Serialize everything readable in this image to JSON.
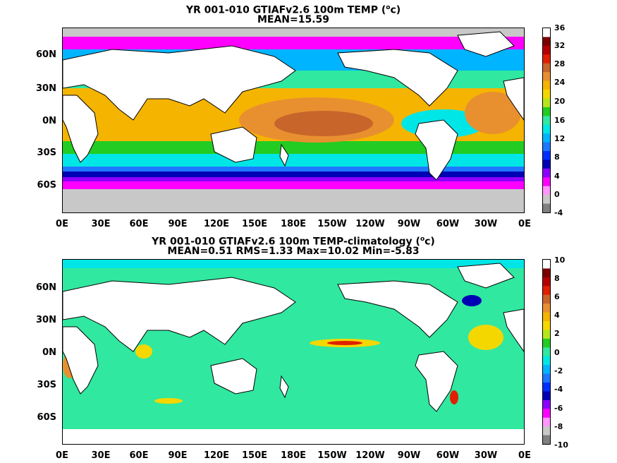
{
  "panels": [
    {
      "title_line1_pre": "YR 001-010 GTIAFv2.6 100m TEMP (",
      "title_unit_sup": "o",
      "title_unit_post": "c)",
      "title_line2": "MEAN=15.59",
      "lat_labels": [
        "60N",
        "30N",
        "0N",
        "30S",
        "60S"
      ],
      "lon_labels": [
        "0E",
        "30E",
        "60E",
        "90E",
        "120E",
        "150E",
        "180E",
        "150W",
        "120W",
        "90W",
        "60W",
        "30W",
        "0E"
      ],
      "colorbar": {
        "labels": [
          "36",
          "32",
          "28",
          "24",
          "20",
          "16",
          "12",
          "8",
          "4",
          "0",
          "-4"
        ],
        "colors": [
          "#ffffff",
          "#7a0000",
          "#b40000",
          "#e02000",
          "#c8652a",
          "#e89030",
          "#f5b400",
          "#f5d700",
          "#b5e61d",
          "#22cc22",
          "#30e8a0",
          "#00e6e6",
          "#00b4ff",
          "#1e78ff",
          "#0030ff",
          "#0000b4",
          "#8c00ff",
          "#ff00ff",
          "#ff96ff",
          "#c8c8c8",
          "#808080"
        ]
      }
    },
    {
      "title_line1_pre": "YR 001-010 GTIAFv2.6 100m TEMP-climatology (",
      "title_unit_sup": "o",
      "title_unit_post": "c)",
      "title_line2": "MEAN=0.51   RMS=1.33   Max=10.02   Min=-5.83",
      "lat_labels": [
        "60N",
        "30N",
        "0N",
        "30S",
        "60S"
      ],
      "lon_labels": [
        "0E",
        "30E",
        "60E",
        "90E",
        "120E",
        "150E",
        "180E",
        "150W",
        "120W",
        "90W",
        "60W",
        "30W",
        "0E"
      ],
      "colorbar": {
        "labels": [
          "10",
          "8",
          "6",
          "4",
          "2",
          "0",
          "-2",
          "-4",
          "-6",
          "-8",
          "-10"
        ],
        "colors": [
          "#ffffff",
          "#7a0000",
          "#b40000",
          "#e02000",
          "#c8652a",
          "#e89030",
          "#f5b400",
          "#f5d700",
          "#b5e61d",
          "#22cc22",
          "#30e8a0",
          "#00e6e6",
          "#00b4ff",
          "#1e78ff",
          "#0030ff",
          "#0000b4",
          "#8c00ff",
          "#ff00ff",
          "#ff96ff",
          "#c8c8c8",
          "#808080"
        ]
      }
    }
  ]
}
